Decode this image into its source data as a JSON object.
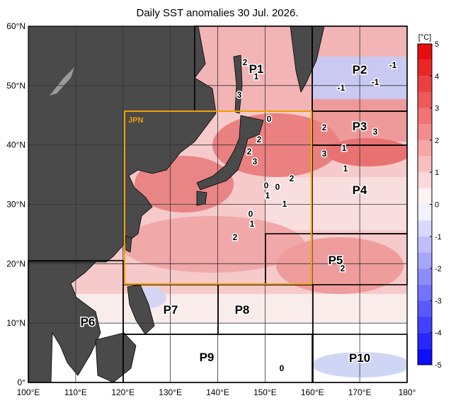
{
  "title": "Daily SST anomalies 30 Jul. 2026.",
  "map": {
    "lon_lim": [
      100,
      180
    ],
    "lat_lim": [
      0,
      60
    ],
    "lon_ticks": [
      {
        "value": 100,
        "label": "100°E"
      },
      {
        "value": 110,
        "label": "110°E"
      },
      {
        "value": 120,
        "label": "120°E"
      },
      {
        "value": 130,
        "label": "130°E"
      },
      {
        "value": 140,
        "label": "140°E"
      },
      {
        "value": 150,
        "label": "150°E"
      },
      {
        "value": 160,
        "label": "160°E"
      },
      {
        "value": 170,
        "label": "170°E"
      },
      {
        "value": 180,
        "label": "180°"
      }
    ],
    "lat_ticks": [
      {
        "value": 0,
        "label": "0°"
      },
      {
        "value": 10,
        "label": "10°N"
      },
      {
        "value": 20,
        "label": "20°N"
      },
      {
        "value": 30,
        "label": "30°N"
      },
      {
        "value": 40,
        "label": "40°N"
      },
      {
        "value": 50,
        "label": "50°N"
      },
      {
        "value": 60,
        "label": "60°N"
      }
    ],
    "box_label": "JPN",
    "regions": [
      "P1",
      "P2",
      "P3",
      "P4",
      "P5",
      "P6",
      "P7",
      "P8",
      "P9",
      "P10"
    ],
    "contour_labels": [
      2,
      1,
      3,
      -1,
      -1,
      -1,
      0,
      2,
      2,
      3,
      3,
      2,
      3,
      1,
      1,
      0,
      0,
      1,
      1,
      2,
      0,
      1,
      2,
      2,
      0
    ]
  },
  "colorbar": {
    "unit": "[°C]",
    "lim": [
      -5,
      5
    ],
    "ticks": [
      5,
      4,
      3,
      2,
      1,
      0,
      -1,
      -2,
      -3,
      -4,
      -5
    ]
  }
}
